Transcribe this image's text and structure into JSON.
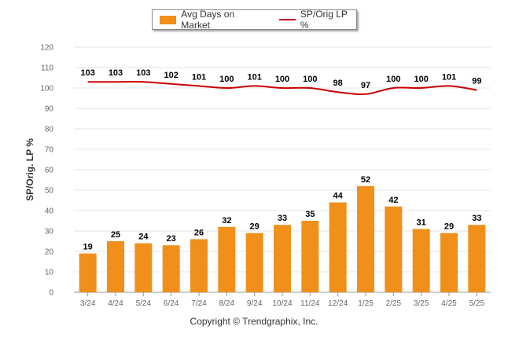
{
  "chart_data": {
    "type": "bar",
    "categories": [
      "3/24",
      "4/24",
      "5/24",
      "6/24",
      "7/24",
      "8/24",
      "9/24",
      "10/24",
      "11/24",
      "12/24",
      "1/25",
      "2/25",
      "3/25",
      "4/25",
      "5/25"
    ],
    "series": [
      {
        "name": "Avg Days on Market",
        "type": "bar",
        "color": "#F0901A",
        "values": [
          19,
          25,
          24,
          23,
          26,
          32,
          29,
          33,
          35,
          44,
          52,
          42,
          31,
          29,
          33
        ]
      },
      {
        "name": "SP/Orig LP %",
        "type": "line",
        "color": "#CC0000",
        "values": [
          103,
          103,
          103,
          102,
          101,
          100,
          101,
          100,
          100,
          98,
          97,
          100,
          100,
          101,
          99
        ]
      }
    ],
    "ylabel": "SP/Orig. LP %",
    "ylim": [
      0,
      120
    ],
    "yticks": [
      0,
      10,
      20,
      30,
      40,
      50,
      60,
      70,
      80,
      90,
      100,
      110,
      120
    ],
    "grid": true,
    "legend_position": "top"
  },
  "legend": {
    "bar_label": "Avg Days on Market",
    "line_label": "SP/Orig LP %"
  },
  "footer": {
    "copyright": "Copyright © Trendgraphix, Inc."
  }
}
